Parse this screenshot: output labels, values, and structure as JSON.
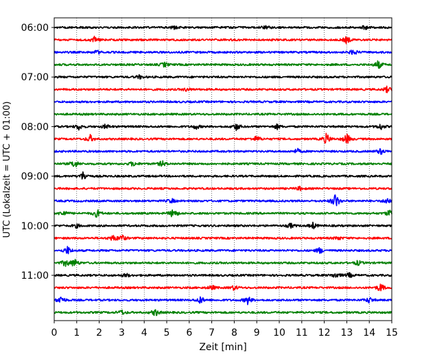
{
  "chart_data": {
    "type": "line",
    "title": "",
    "xlabel": "Zeit  [min]",
    "ylabel": "UTC (Lokalzeit = UTC + 01:00)",
    "xlim": [
      0,
      15
    ],
    "x_ticks": [
      "0",
      "1",
      "2",
      "3",
      "4",
      "5",
      "6",
      "7",
      "8",
      "9",
      "10",
      "11",
      "12",
      "13",
      "14",
      "15"
    ],
    "y_tick_labels": [
      "06:00",
      "07:00",
      "08:00",
      "09:00",
      "10:00",
      "11:00"
    ],
    "grid": "vertical dotted lines at each minute",
    "trace_interval_min": 15,
    "trace_colors": [
      "#000000",
      "#ff0000",
      "#0000ff",
      "#008000"
    ],
    "traces": [
      {
        "start": "06:00",
        "color": "#000000",
        "events_min": [
          5.3,
          9.4,
          13.8
        ],
        "event_amps": [
          0.3,
          0.3,
          0.3
        ]
      },
      {
        "start": "06:15",
        "color": "#ff0000",
        "events_min": [
          1.8,
          13.0
        ],
        "event_amps": [
          0.5,
          0.6
        ]
      },
      {
        "start": "06:30",
        "color": "#0000ff",
        "events_min": [
          1.9,
          13.3
        ],
        "event_amps": [
          0.3,
          0.5
        ]
      },
      {
        "start": "06:45",
        "color": "#008000",
        "events_min": [
          4.9,
          14.4
        ],
        "event_amps": [
          0.4,
          0.7
        ]
      },
      {
        "start": "07:00",
        "color": "#000000",
        "events_min": [
          3.8
        ],
        "event_amps": [
          0.3
        ]
      },
      {
        "start": "07:15",
        "color": "#ff0000",
        "events_min": [
          5.9,
          14.8
        ],
        "event_amps": [
          0.3,
          0.5
        ]
      },
      {
        "start": "07:30",
        "color": "#0000ff",
        "events_min": [],
        "event_amps": []
      },
      {
        "start": "07:45",
        "color": "#008000",
        "events_min": [],
        "event_amps": []
      },
      {
        "start": "08:00",
        "color": "#000000",
        "events_min": [
          1.1,
          2.3,
          6.3,
          8.1,
          9.9,
          14.5
        ],
        "event_amps": [
          0.5,
          0.4,
          0.4,
          0.6,
          0.4,
          0.5
        ]
      },
      {
        "start": "08:15",
        "color": "#ff0000",
        "events_min": [
          1.6,
          9.0,
          12.1,
          13.0
        ],
        "event_amps": [
          0.6,
          0.5,
          0.9,
          0.9
        ]
      },
      {
        "start": "08:30",
        "color": "#0000ff",
        "events_min": [
          10.8,
          14.5
        ],
        "event_amps": [
          0.4,
          0.5
        ]
      },
      {
        "start": "08:45",
        "color": "#008000",
        "events_min": [
          0.9,
          3.5,
          4.8
        ],
        "event_amps": [
          0.7,
          0.4,
          0.5
        ]
      },
      {
        "start": "09:00",
        "color": "#000000",
        "events_min": [
          1.3
        ],
        "event_amps": [
          0.8
        ]
      },
      {
        "start": "09:15",
        "color": "#ff0000",
        "events_min": [
          10.9
        ],
        "event_amps": [
          0.3
        ]
      },
      {
        "start": "09:30",
        "color": "#0000ff",
        "events_min": [
          5.2,
          12.5,
          14.8
        ],
        "event_amps": [
          0.4,
          1.3,
          0.6
        ]
      },
      {
        "start": "09:45",
        "color": "#008000",
        "events_min": [
          0.4,
          1.9,
          5.3,
          14.9
        ],
        "event_amps": [
          0.5,
          0.7,
          0.9,
          0.6
        ]
      },
      {
        "start": "10:00",
        "color": "#000000",
        "events_min": [
          1.0,
          10.5,
          11.5
        ],
        "event_amps": [
          0.3,
          0.4,
          0.5
        ]
      },
      {
        "start": "10:15",
        "color": "#ff0000",
        "events_min": [
          2.6,
          3.0,
          12.6
        ],
        "event_amps": [
          0.5,
          0.6,
          0.3
        ]
      },
      {
        "start": "10:30",
        "color": "#0000ff",
        "events_min": [
          0.6,
          11.8
        ],
        "event_amps": [
          0.7,
          0.5
        ]
      },
      {
        "start": "10:45",
        "color": "#008000",
        "events_min": [
          0.5,
          0.9,
          13.5
        ],
        "event_amps": [
          0.6,
          0.7,
          0.4
        ]
      },
      {
        "start": "11:00",
        "color": "#000000",
        "events_min": [
          3.2,
          12.5,
          13.1
        ],
        "event_amps": [
          0.3,
          0.5,
          0.4
        ]
      },
      {
        "start": "11:15",
        "color": "#ff0000",
        "events_min": [
          7.0,
          8.0,
          14.5
        ],
        "event_amps": [
          0.4,
          0.4,
          0.7
        ]
      },
      {
        "start": "11:30",
        "color": "#0000ff",
        "events_min": [
          0.3,
          6.5,
          8.6,
          14.0
        ],
        "event_amps": [
          0.7,
          0.6,
          0.7,
          0.5
        ]
      },
      {
        "start": "11:45",
        "color": "#008000",
        "events_min": [
          4.5,
          3.0
        ],
        "event_amps": [
          0.6,
          0.4
        ]
      }
    ]
  }
}
